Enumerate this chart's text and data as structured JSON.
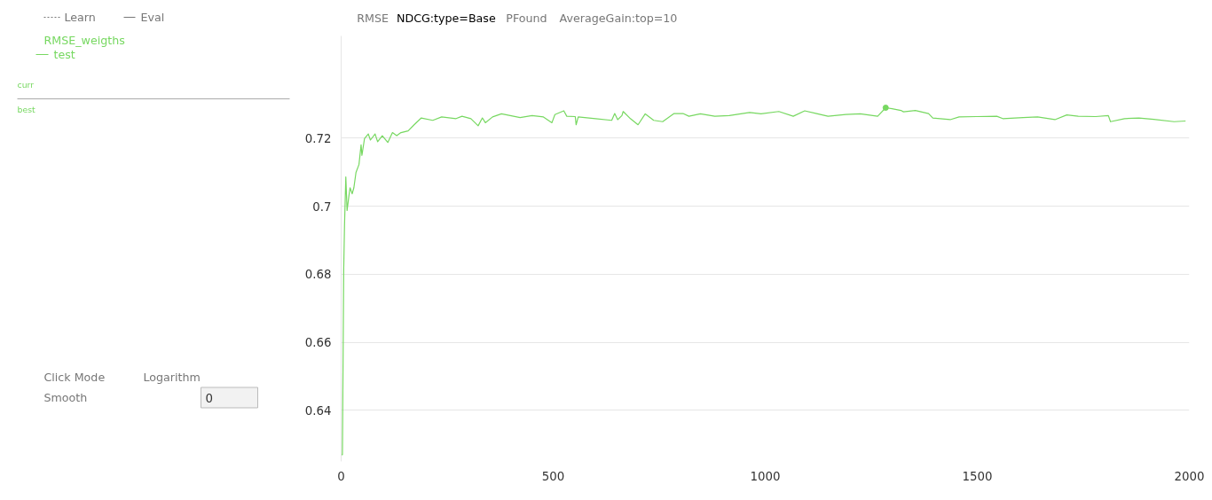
{
  "chart_data": {
    "type": "line",
    "title": "NDCG:type=Base",
    "legend_title": "RMSE_weigths",
    "annotations": [
      "RMSE",
      "PFound",
      "AverageGain:top=10",
      "Learn",
      "Eval",
      "curr",
      "best",
      "Click Mode",
      "Logarithm",
      "Smooth",
      "0"
    ],
    "xlim": [
      0,
      2000
    ],
    "ylim": [
      0.625,
      0.75
    ],
    "xticks": [
      0,
      500,
      1000,
      1500,
      2000
    ],
    "yticks": [
      0.64,
      0.66,
      0.68,
      0.7,
      0.72
    ],
    "grid": "y",
    "series": [
      {
        "name": "test",
        "color": "#77d861",
        "x": [
          0,
          3,
          6,
          8,
          11,
          14,
          18,
          21,
          26,
          30,
          35,
          42,
          47,
          49,
          55,
          64,
          69,
          80,
          86,
          97,
          110,
          121,
          131,
          141,
          158,
          172,
          189,
          216,
          237,
          271,
          285,
          306,
          323,
          333,
          340,
          357,
          378,
          422,
          450,
          477,
          497,
          504,
          525,
          532,
          552,
          554,
          559,
          600,
          638,
          645,
          652,
          662,
          665,
          682,
          700,
          717,
          737,
          758,
          785,
          806,
          820,
          847,
          881,
          915,
          963,
          990,
          1032,
          1066,
          1093,
          1121,
          1148,
          1190,
          1224,
          1265,
          1284,
          1299,
          1320,
          1326,
          1354,
          1385,
          1395,
          1436,
          1457,
          1498,
          1546,
          1560,
          1608,
          1642,
          1683,
          1711,
          1738,
          1779,
          1809,
          1814,
          1847,
          1881,
          1916,
          1964,
          1991
        ],
        "values": [
          0.627,
          0.627,
          0.681,
          0.6946,
          0.7086,
          0.6987,
          0.7027,
          0.7054,
          0.7036,
          0.7054,
          0.7099,
          0.7122,
          0.718,
          0.7149,
          0.7198,
          0.7212,
          0.7194,
          0.7212,
          0.7189,
          0.7207,
          0.7187,
          0.7216,
          0.7207,
          0.7216,
          0.7221,
          0.7239,
          0.7259,
          0.7252,
          0.7262,
          0.7257,
          0.7264,
          0.7257,
          0.7236,
          0.7259,
          0.7245,
          0.7262,
          0.7271,
          0.726,
          0.7266,
          0.7262,
          0.7245,
          0.7269,
          0.728,
          0.7264,
          0.7263,
          0.7239,
          0.7262,
          0.7257,
          0.7252,
          0.7272,
          0.7254,
          0.7266,
          0.7278,
          0.7257,
          0.7239,
          0.7271,
          0.7252,
          0.7248,
          0.7272,
          0.7272,
          0.7264,
          0.7271,
          0.7264,
          0.7266,
          0.7275,
          0.7271,
          0.7278,
          0.7264,
          0.728,
          0.7272,
          0.7264,
          0.7269,
          0.7271,
          0.7264,
          0.7289,
          0.7286,
          0.7281,
          0.7277,
          0.7281,
          0.7272,
          0.7259,
          0.7254,
          0.7262,
          0.7263,
          0.7264,
          0.7257,
          0.726,
          0.7262,
          0.7254,
          0.7268,
          0.7264,
          0.7263,
          0.7266,
          0.7248,
          0.7257,
          0.7259,
          0.7255,
          0.7248,
          0.725
        ]
      },
      {
        "type": "scatter",
        "color": "#77d861",
        "x": [
          1284
        ],
        "values": [
          0.7289
        ],
        "marker": "circle"
      }
    ]
  }
}
